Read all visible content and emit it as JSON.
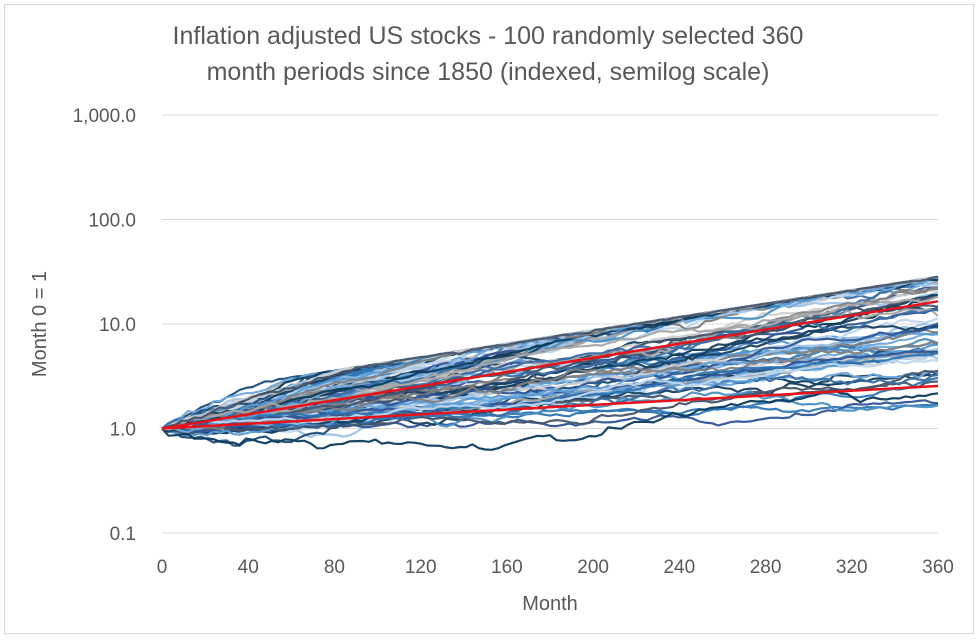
{
  "chart_data": {
    "type": "line",
    "title": "Inflation adjusted US stocks - 100 randomly selected 360 month periods since 1850 (indexed, semilog scale)",
    "title_lines": [
      "Inflation adjusted US stocks - 100 randomly selected 360",
      "month periods since 1850 (indexed, semilog scale)"
    ],
    "xlabel": "Month",
    "ylabel": "Month 0 = 1",
    "x_ticks": [
      "0",
      "40",
      "80",
      "120",
      "160",
      "200",
      "240",
      "280",
      "320",
      "360"
    ],
    "y_ticks": [
      "0.1",
      "1.0",
      "10.0",
      "100.0",
      "1,000.0"
    ],
    "xlim": [
      0,
      360
    ],
    "ylim": [
      0.1,
      1000
    ],
    "y_scale": "log",
    "grid": "horizontal",
    "series_count": 100,
    "series_colors": [
      "#1f4e79",
      "#2e75b6",
      "#5b9bd5",
      "#9dc3e6",
      "#bdd7ee",
      "#0b3c5d",
      "#7f7f7f",
      "#a6a6a6",
      "#d0cece",
      "#44546a",
      "#2f5597",
      "#4a90c2",
      "#173f5f",
      "#6fa8dc",
      "#3a6ea5"
    ],
    "series": [
      {
        "name": "",
        "x": [
          0,
          360
        ],
        "y": [
          1.0,
          16.5
        ],
        "color": "#e8121a"
      },
      {
        "name": "",
        "x": [
          0,
          360
        ],
        "y": [
          1.0,
          2.55
        ],
        "color": "#e8121a"
      }
    ]
  }
}
